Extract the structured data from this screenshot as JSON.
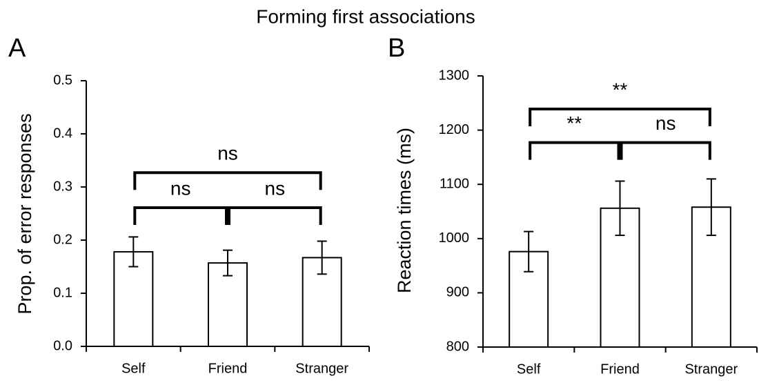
{
  "title": "Forming first associations",
  "chart_data": [
    {
      "type": "bar",
      "panel": "A",
      "ylabel": "Prop. of error responses",
      "categories": [
        "Self",
        "Friend",
        "Stranger"
      ],
      "values": [
        0.178,
        0.157,
        0.167
      ],
      "errors": [
        0.028,
        0.024,
        0.031
      ],
      "color": "#ffffff",
      "ylim": [
        0,
        0.5
      ],
      "yticks": [
        {
          "value": 0,
          "label": "0.0"
        },
        0.1,
        0.2,
        0.3,
        0.4,
        0.5
      ],
      "brackets": [
        {
          "from": 0,
          "to": 1,
          "y": 0.261,
          "label": "ns"
        },
        {
          "from": 1,
          "to": 2,
          "y": 0.261,
          "label": "ns"
        },
        {
          "from": 0,
          "to": 2,
          "y": 0.327,
          "label": "ns"
        }
      ]
    },
    {
      "type": "bar",
      "panel": "B",
      "ylabel": "Reaction times (ms)",
      "categories": [
        "Self",
        "Friend",
        "Stranger"
      ],
      "values": [
        976,
        1056,
        1058
      ],
      "errors": [
        37,
        50,
        52
      ],
      "color": "#ffffff",
      "ylim": [
        800,
        1300
      ],
      "yticks": [
        800,
        900,
        1000,
        1100,
        1200,
        1300
      ],
      "brackets": [
        {
          "from": 0,
          "to": 1,
          "y": 1177,
          "label": "**"
        },
        {
          "from": 1,
          "to": 2,
          "y": 1177,
          "label": "ns"
        },
        {
          "from": 0,
          "to": 2,
          "y": 1239,
          "label": "**"
        }
      ]
    }
  ]
}
